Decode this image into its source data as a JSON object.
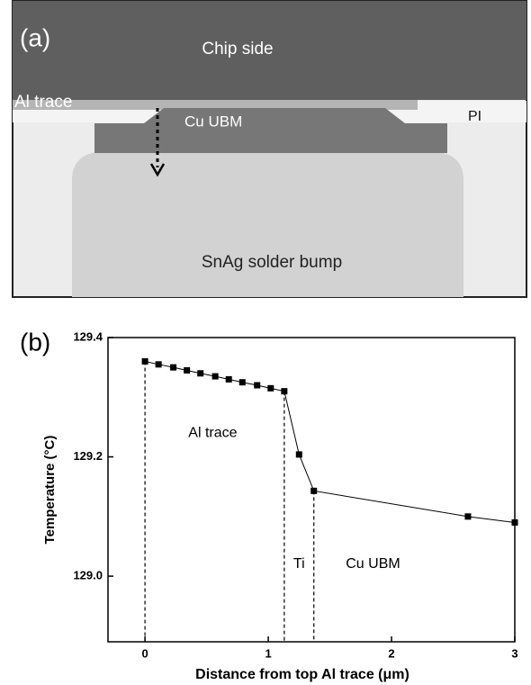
{
  "diagram": {
    "panel_label": "(a)",
    "chip": "Chip side",
    "al_trace": "Al trace",
    "ubm": "Cu UBM",
    "pi": "PI",
    "bump": "SnAg solder bump"
  },
  "chart_data": {
    "type": "line",
    "panel_label": "(b)",
    "x_label": "Distance from top Al trace (μm)",
    "y_label": "Temperature (°C)",
    "xlim": [
      -0.3,
      3
    ],
    "ylim": [
      128.89,
      129.4
    ],
    "xticks": [
      0,
      1,
      2,
      3
    ],
    "yticks": [
      {
        "value": 129.0,
        "label": "129.0"
      },
      129.2,
      129.4
    ],
    "series": [
      {
        "color": "#000000",
        "x": [
          0,
          0.11,
          0.23,
          0.34,
          0.45,
          0.57,
          0.68,
          0.79,
          0.91,
          1.02,
          1.13,
          1.25,
          1.37,
          2.62,
          3
        ],
        "values": [
          129.36,
          129.355,
          129.35,
          129.345,
          129.34,
          129.335,
          129.33,
          129.325,
          129.32,
          129.315,
          129.31,
          129.204,
          129.143,
          129.1,
          129.09
        ]
      }
    ],
    "boundaries": [
      0,
      1.13,
      1.37
    ],
    "regions": [
      {
        "label": "Al trace",
        "x": 0.55,
        "y": 129.24
      },
      {
        "label": "Ti",
        "x": 1.25,
        "y": 129.02
      },
      {
        "label": "Cu UBM",
        "x": 1.85,
        "y": 129.02
      }
    ]
  }
}
